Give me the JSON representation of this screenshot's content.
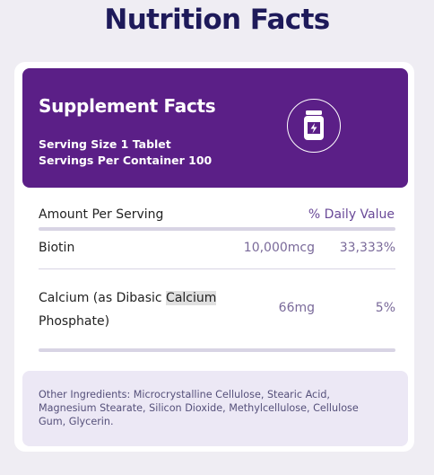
{
  "page": {
    "title": "Nutrition Facts"
  },
  "panel": {
    "heading": "Supplement Facts",
    "serving_size": "Serving Size 1 Tablet",
    "servings_per_container": "Servings Per Container 100",
    "icon": "supplement-jar-icon"
  },
  "table": {
    "amount_header": "Amount Per Serving",
    "dv_header": "% Daily Value",
    "rows": [
      {
        "name": "Biotin",
        "amount": "10,000mcg",
        "dv": "33,333%"
      },
      {
        "name_part1": "Calcium (as Dibasic ",
        "name_highlight": "Calcium",
        "name_part2": "Phosphate)",
        "amount": "66mg",
        "dv": "5%"
      }
    ]
  },
  "other_ingredients": "Other Ingredients: Microcrystalline Cellulose, Stearic Acid, Magnesium Stearate, Silicon Dioxide, Methylcellulose, Cellulose Gum, Glycerin.",
  "colors": {
    "accent": "#5b1f87",
    "title": "#1e1a5a",
    "panel_bg": "#ece8f5"
  }
}
